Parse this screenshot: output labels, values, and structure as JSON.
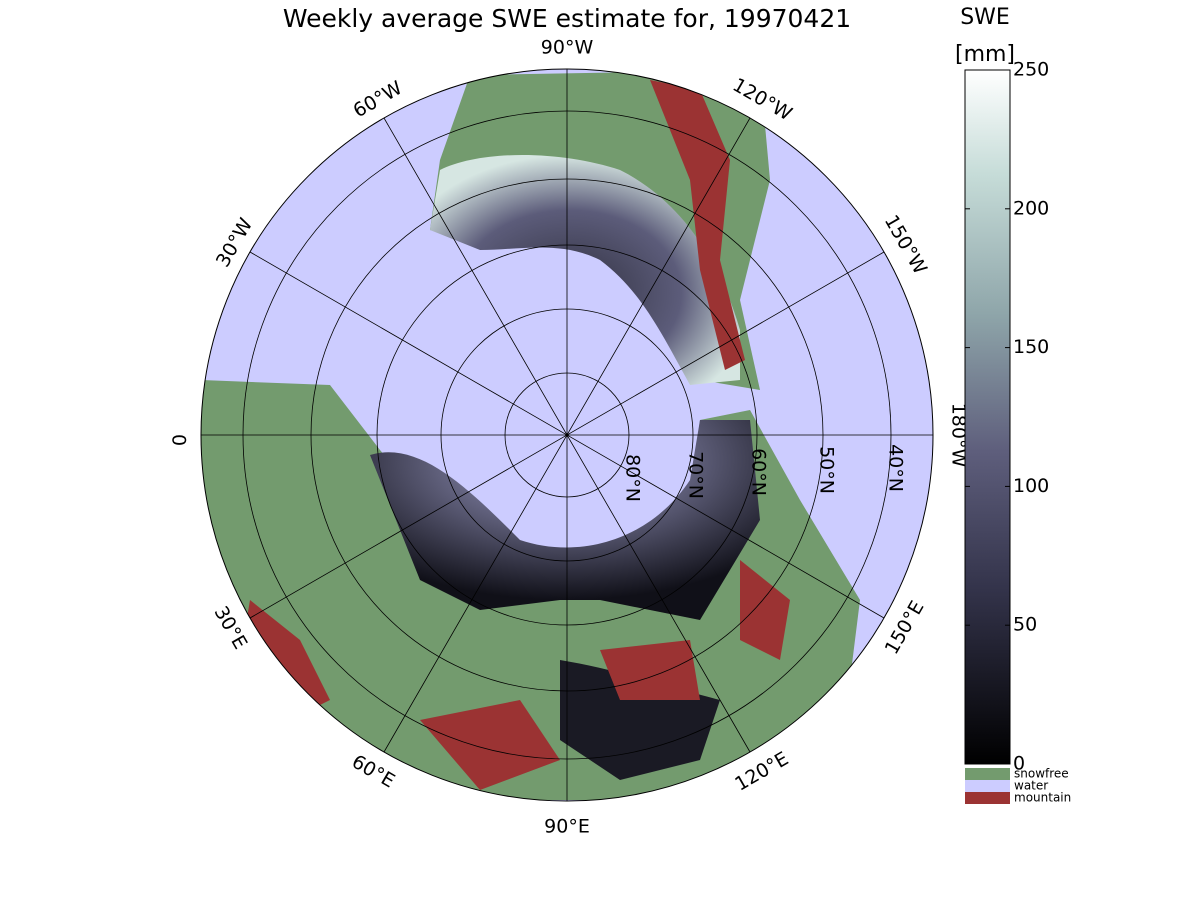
{
  "title": "Weekly average SWE estimate for, 19970421",
  "map": {
    "meridian_labels": [
      "90°W",
      "120°W",
      "150°W",
      "180°W",
      "150°E",
      "120°E",
      "90°E",
      "60°E",
      "30°E",
      "0",
      "30°W",
      "60°W"
    ],
    "parallel_labels": [
      "80°N",
      "70°N",
      "60°N",
      "50°N",
      "40°N"
    ]
  },
  "colorbar": {
    "title": "SWE",
    "unit": "[mm]",
    "lim": [
      0,
      250
    ],
    "ticks": [
      0,
      50,
      100,
      150,
      200,
      250
    ],
    "classes": [
      {
        "label": "snowfree",
        "color": "#739b6e"
      },
      {
        "label": "water",
        "color": "#ccccff"
      },
      {
        "label": "mountain",
        "color": "#9b3333"
      }
    ]
  }
}
